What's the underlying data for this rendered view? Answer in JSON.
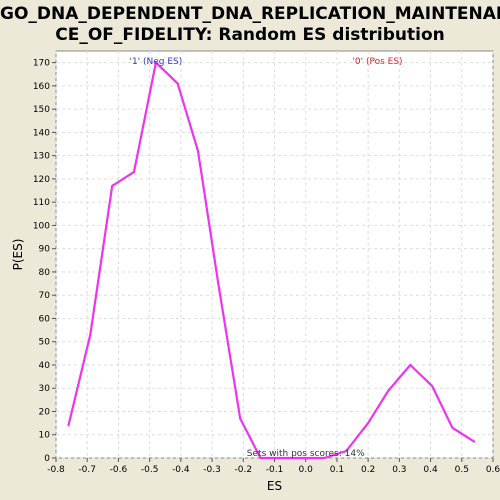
{
  "chart_data": {
    "type": "line",
    "title_lines": [
      "GO_DNA_DEPENDENT_DNA_REPLICATION_MAINTENAN",
      "CE_OF_FIDELITY: Random ES distribution"
    ],
    "xlabel": "ES",
    "ylabel": "P(ES)",
    "xlim": [
      -0.8,
      0.6
    ],
    "ylim": [
      0,
      175
    ],
    "xticks": [
      "-0.8",
      "-0.7",
      "-0.6",
      "-0.5",
      "-0.4",
      "-0.3",
      "-0.2",
      "-0.1",
      "0.0",
      "0.1",
      "0.2",
      "0.3",
      "0.4",
      "0.5",
      "0.6"
    ],
    "xtick_values": [
      -0.8,
      -0.7,
      -0.6,
      -0.5,
      -0.4,
      -0.3,
      -0.2,
      -0.1,
      0.0,
      0.1,
      0.2,
      0.3,
      0.4,
      0.5,
      0.6
    ],
    "yticks": [
      "0",
      "10",
      "20",
      "30",
      "40",
      "50",
      "60",
      "70",
      "80",
      "90",
      "100",
      "110",
      "120",
      "130",
      "140",
      "150",
      "160",
      "170"
    ],
    "ytick_values": [
      0,
      10,
      20,
      30,
      40,
      50,
      60,
      70,
      80,
      90,
      100,
      110,
      120,
      130,
      140,
      150,
      160,
      170
    ],
    "grid": true,
    "series": [
      {
        "color": "#ee33ee",
        "x": [
          -0.76,
          -0.69,
          -0.62,
          -0.55,
          -0.48,
          -0.41,
          -0.345,
          -0.28,
          -0.21,
          -0.145,
          -0.075,
          -0.01,
          0.06,
          0.13,
          0.2,
          0.265,
          0.335,
          0.405,
          0.47,
          0.54
        ],
        "y": [
          14,
          53,
          117,
          123,
          170,
          161,
          132,
          75,
          17,
          0,
          0,
          0,
          0,
          3,
          15,
          29,
          40,
          31,
          13,
          7
        ]
      }
    ],
    "annotations": {
      "neg_label": "'1' (Neg ES)",
      "neg_color": "#3333cc",
      "pos_label": "'0' (Pos ES)",
      "pos_color": "#dd2222",
      "footer": "Sets with pos scores: 14%"
    }
  }
}
